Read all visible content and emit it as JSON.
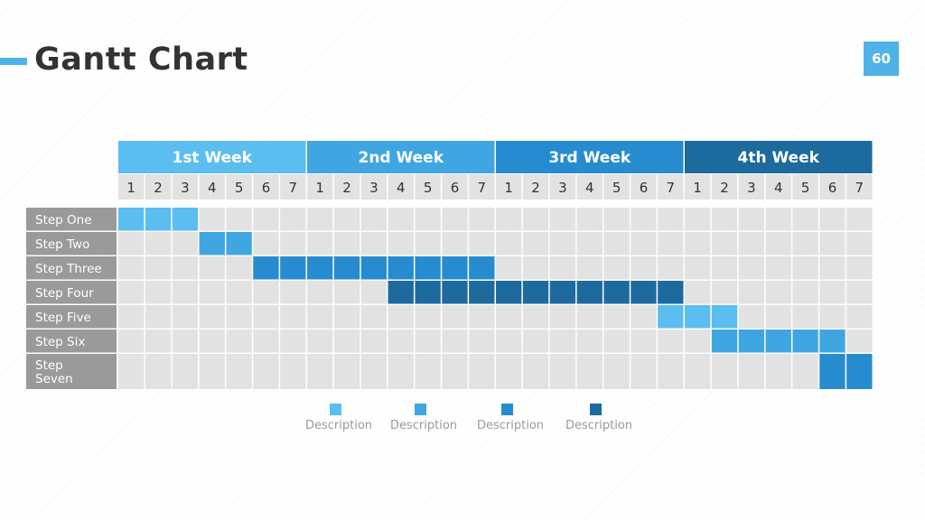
{
  "title": "Gantt Chart",
  "page_number": "60",
  "colors": {
    "accent": "#4fb3e8",
    "grid_cell": "#e2e2e2",
    "label_bg": "#9a9a9a",
    "day_header_bg": "#e2e2e2"
  },
  "chart_data": {
    "type": "gantt",
    "weeks": [
      {
        "label": "1st Week",
        "color": "#5bbdf0"
      },
      {
        "label": "2nd Week",
        "color": "#3fa6e2"
      },
      {
        "label": "3rd Week",
        "color": "#268ccf"
      },
      {
        "label": "4th Week",
        "color": "#1d6a9e"
      }
    ],
    "days_per_week": [
      "1",
      "2",
      "3",
      "4",
      "5",
      "6",
      "7"
    ],
    "tasks": [
      {
        "label": "Step One",
        "start_day": 1,
        "end_day": 3,
        "color": "#5bbdf0"
      },
      {
        "label": "Step Two",
        "start_day": 4,
        "end_day": 5,
        "color": "#3fa6e2"
      },
      {
        "label": "Step Three",
        "start_day": 6,
        "end_day": 14,
        "color": "#268ccf"
      },
      {
        "label": "Step Four",
        "start_day": 11,
        "end_day": 21,
        "color": "#1d6a9e"
      },
      {
        "label": "Step Five",
        "start_day": 21,
        "end_day": 23,
        "color": "#5bbdf0"
      },
      {
        "label": "Step Six",
        "start_day": 23,
        "end_day": 27,
        "color": "#3fa6e2"
      },
      {
        "label": "Step Seven",
        "start_day": 27,
        "end_day": 28,
        "color": "#268ccf"
      }
    ],
    "legend": [
      {
        "label": "Description",
        "color": "#5bbdf0"
      },
      {
        "label": "Description",
        "color": "#3fa6e2"
      },
      {
        "label": "Description",
        "color": "#268ccf"
      },
      {
        "label": "Description",
        "color": "#1d6a9e"
      }
    ]
  }
}
